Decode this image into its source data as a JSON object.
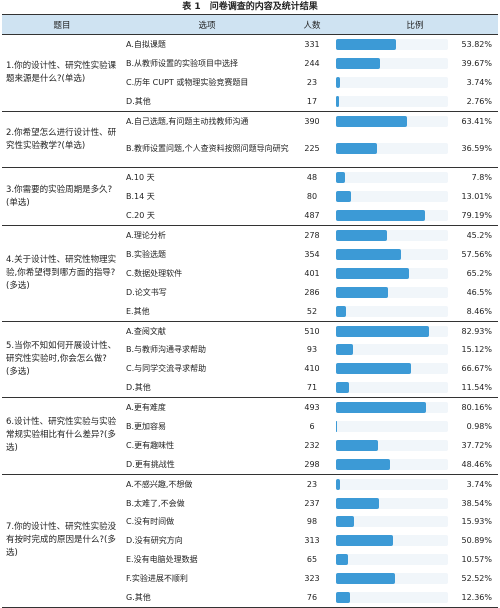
{
  "caption": {
    "label": "表 1",
    "title": "问卷调查的内容及统计结果"
  },
  "headers": {
    "question": "题目",
    "option": "选项",
    "count": "人数",
    "ratio": "比例"
  },
  "colors": {
    "header_bg": "#cfe3f2",
    "bar": "#3c9ad6",
    "track": "#f1f6fa"
  },
  "questions": [
    {
      "text": "1.你的设计性、研究性实验课题来源是什么?(单选)",
      "options": [
        {
          "label": "A.自拟课题",
          "count": "331",
          "pct": "53.82%",
          "frac": 0.5382
        },
        {
          "label": "B.从教师设置的实验项目中选择",
          "count": "244",
          "pct": "39.67%",
          "frac": 0.3967
        },
        {
          "label": "C.历年 CUPT 或物理实验竞赛题目",
          "count": "23",
          "pct": "3.74%",
          "frac": 0.0374
        },
        {
          "label": "D.其他",
          "count": "17",
          "pct": "2.76%",
          "frac": 0.0276
        }
      ]
    },
    {
      "text": "2.你希望怎么进行设计性、研究性实验教学?(单选)",
      "options": [
        {
          "label": "A.自己选题,有问题主动找教师沟通",
          "count": "390",
          "pct": "63.41%",
          "frac": 0.6341
        },
        {
          "label": "B.教师设置问题,个人查资料按照问题导向研究",
          "count": "225",
          "pct": "36.59%",
          "frac": 0.3659,
          "wrap": true
        }
      ]
    },
    {
      "text": "3.你需要的实验周期是多久?(单选)",
      "options": [
        {
          "label": "A.10 天",
          "count": "48",
          "pct": "7.8%",
          "frac": 0.078
        },
        {
          "label": "B.14 天",
          "count": "80",
          "pct": "13.01%",
          "frac": 0.1301
        },
        {
          "label": "C.20 天",
          "count": "487",
          "pct": "79.19%",
          "frac": 0.7919
        }
      ]
    },
    {
      "text": "4.关于设计性、研究性物理实验,你希望得到哪方面的指导?(多选)",
      "options": [
        {
          "label": "A.理论分析",
          "count": "278",
          "pct": "45.2%",
          "frac": 0.452
        },
        {
          "label": "B.实验选题",
          "count": "354",
          "pct": "57.56%",
          "frac": 0.5756
        },
        {
          "label": "C.数据处理软件",
          "count": "401",
          "pct": "65.2%",
          "frac": 0.652
        },
        {
          "label": "D.论文书写",
          "count": "286",
          "pct": "46.5%",
          "frac": 0.465
        },
        {
          "label": "E.其他",
          "count": "52",
          "pct": "8.46%",
          "frac": 0.0846
        }
      ]
    },
    {
      "text": "5.当你不知如何开展设计性、研究性实验时,你会怎么做?(多选)",
      "options": [
        {
          "label": "A.查阅文献",
          "count": "510",
          "pct": "82.93%",
          "frac": 0.8293
        },
        {
          "label": "B.与教师沟通寻求帮助",
          "count": "93",
          "pct": "15.12%",
          "frac": 0.1512
        },
        {
          "label": "C.与同学交流寻求帮助",
          "count": "410",
          "pct": "66.67%",
          "frac": 0.6667
        },
        {
          "label": "D.其他",
          "count": "71",
          "pct": "11.54%",
          "frac": 0.1154
        }
      ]
    },
    {
      "text": "6.设计性、研究性实验与实验常规实验相比有什么差异?(多选)",
      "options": [
        {
          "label": "A.更有难度",
          "count": "493",
          "pct": "80.16%",
          "frac": 0.8016
        },
        {
          "label": "B.更加容易",
          "count": "6",
          "pct": "0.98%",
          "frac": 0.0098
        },
        {
          "label": "C.更有趣味性",
          "count": "232",
          "pct": "37.72%",
          "frac": 0.3772
        },
        {
          "label": "D.更有挑战性",
          "count": "298",
          "pct": "48.46%",
          "frac": 0.4846
        }
      ]
    },
    {
      "text": "7.你的设计性、研究性实验没有按时完成的原因是什么?(多选)",
      "options": [
        {
          "label": "A.不感兴趣,不想做",
          "count": "23",
          "pct": "3.74%",
          "frac": 0.0374
        },
        {
          "label": "B.太难了,不会做",
          "count": "237",
          "pct": "38.54%",
          "frac": 0.3854
        },
        {
          "label": "C.没有时间做",
          "count": "98",
          "pct": "15.93%",
          "frac": 0.1593
        },
        {
          "label": "D.没有研究方向",
          "count": "313",
          "pct": "50.89%",
          "frac": 0.5089
        },
        {
          "label": "E.没有电脑处理数据",
          "count": "65",
          "pct": "10.57%",
          "frac": 0.1057
        },
        {
          "label": "F.实验进展不顺利",
          "count": "323",
          "pct": "52.52%",
          "frac": 0.5252
        },
        {
          "label": "G.其他",
          "count": "76",
          "pct": "12.36%",
          "frac": 0.1236
        }
      ]
    }
  ]
}
